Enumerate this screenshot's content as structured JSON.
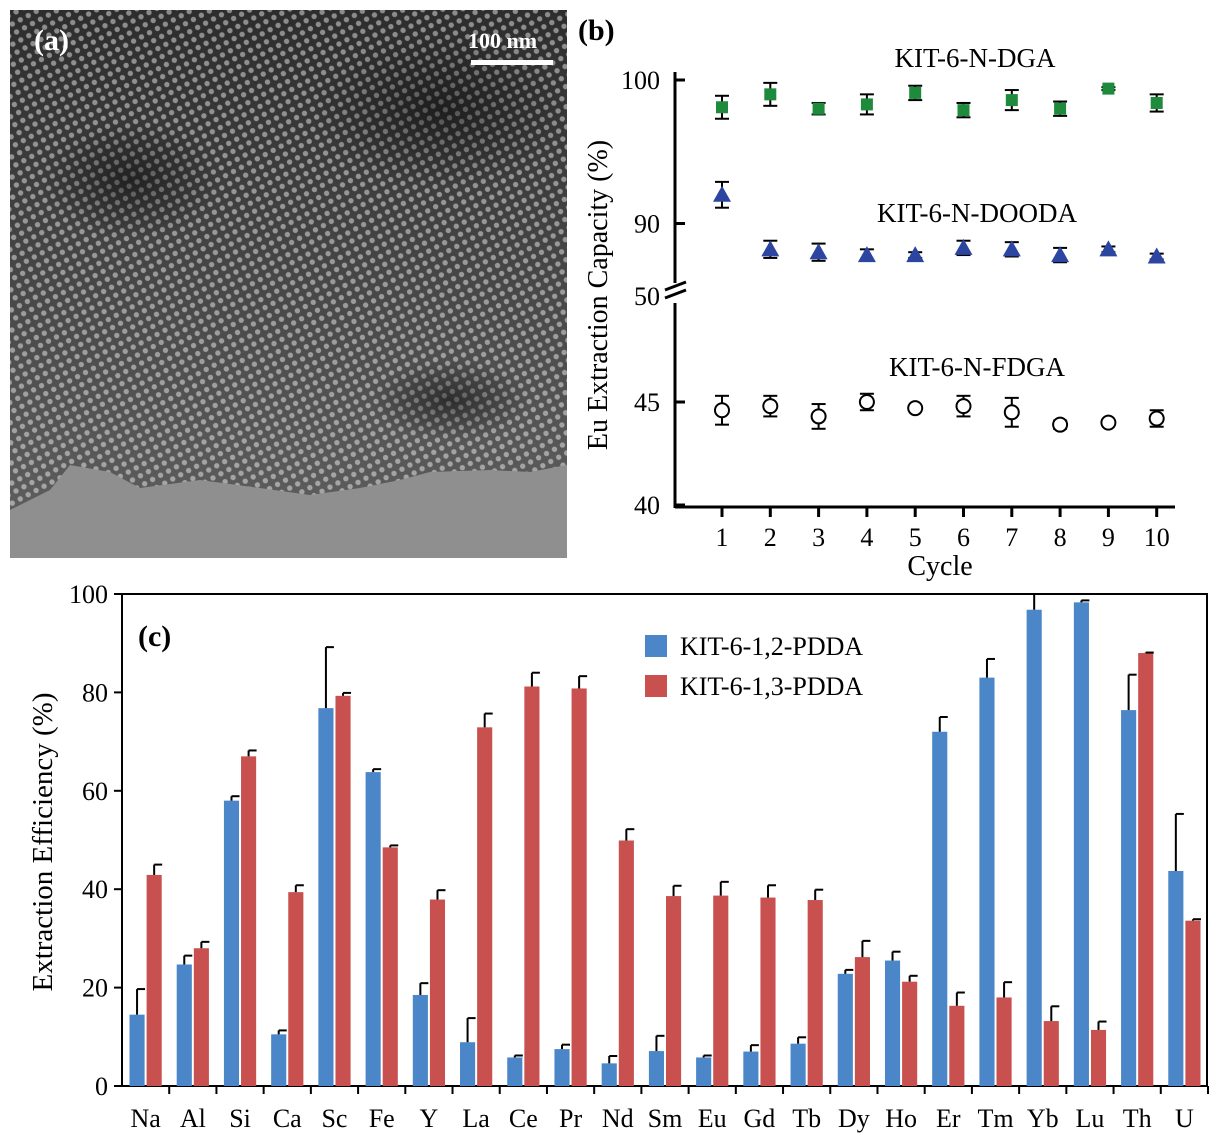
{
  "panel_a": {
    "label": "(a)",
    "scale_bar": "100 nm"
  },
  "chart_data": [
    {
      "panel": "(b)",
      "type": "scatter",
      "xlabel": "Cycle",
      "ylabel": "Eu Extraction Capacity (%)",
      "x": [
        1,
        2,
        3,
        4,
        5,
        6,
        7,
        8,
        9,
        10
      ],
      "y_ticks_upper": [
        90,
        100
      ],
      "y_ticks_lower": [
        40,
        45,
        50
      ],
      "axis_break": true,
      "series": [
        {
          "name": "KIT-6-N-DGA",
          "marker": "square",
          "color": "#1e8a3c",
          "values": [
            98.1,
            99.0,
            98.0,
            98.3,
            99.1,
            97.9,
            98.6,
            98.0,
            99.4,
            98.4
          ],
          "errors": [
            0.8,
            0.8,
            0.4,
            0.7,
            0.5,
            0.5,
            0.7,
            0.5,
            0.1,
            0.6
          ]
        },
        {
          "name": "KIT-6-N-DOODA",
          "marker": "triangle",
          "color": "#2c45a0",
          "values": [
            92.0,
            88.2,
            88.0,
            87.8,
            87.8,
            88.3,
            88.2,
            87.8,
            88.2,
            87.7
          ],
          "errors": [
            0.9,
            0.6,
            0.6,
            0.4,
            0.2,
            0.5,
            0.5,
            0.5,
            0.2,
            0.2
          ]
        },
        {
          "name": "KIT-6-N-FDGA",
          "marker": "open-circle",
          "color": "#000000",
          "values": [
            44.6,
            44.8,
            44.3,
            45.0,
            44.7,
            44.8,
            44.5,
            43.9,
            44.0,
            44.2
          ],
          "errors": [
            0.7,
            0.5,
            0.6,
            0.4,
            0.1,
            0.5,
            0.7,
            0.2,
            0.1,
            0.4
          ]
        }
      ]
    },
    {
      "panel": "(c)",
      "type": "bar",
      "ylabel": "Extraction Efficiency (%)",
      "ylim": [
        0,
        100
      ],
      "yticks": [
        0,
        20,
        40,
        60,
        80,
        100
      ],
      "categories": [
        "Na",
        "Al",
        "Si",
        "Ca",
        "Sc",
        "Fe",
        "Y",
        "La",
        "Ce",
        "Pr",
        "Nd",
        "Sm",
        "Eu",
        "Gd",
        "Tb",
        "Dy",
        "Ho",
        "Er",
        "Tm",
        "Yb",
        "Lu",
        "Th",
        "U"
      ],
      "legend_position": "top-center",
      "series": [
        {
          "name": "KIT-6-1,2-PDDA",
          "color": "#4a86c8",
          "values": [
            14.5,
            24.7,
            58.0,
            10.5,
            76.8,
            63.8,
            18.5,
            8.9,
            5.8,
            7.5,
            4.6,
            7.1,
            5.8,
            7.0,
            8.6,
            22.8,
            25.5,
            72.0,
            83.0,
            96.8,
            98.3,
            76.4,
            43.7
          ],
          "errors": [
            5.2,
            1.8,
            0.9,
            0.8,
            12.4,
            0.6,
            2.4,
            4.9,
            0.4,
            0.9,
            1.5,
            3.1,
            0.4,
            1.3,
            1.3,
            0.8,
            1.8,
            3.0,
            3.8,
            5.0,
            0.4,
            7.2,
            11.6
          ]
        },
        {
          "name": "KIT-6-1,3-PDDA",
          "color": "#c8504e",
          "values": [
            42.9,
            28.0,
            67.0,
            39.4,
            79.3,
            48.5,
            37.9,
            72.9,
            81.2,
            80.8,
            49.9,
            38.6,
            38.7,
            38.3,
            37.8,
            26.2,
            21.2,
            16.3,
            18.0,
            13.2,
            11.4,
            88.0,
            33.6
          ],
          "errors": [
            2.1,
            1.3,
            1.2,
            1.4,
            0.6,
            0.4,
            1.9,
            2.8,
            2.8,
            2.5,
            2.3,
            2.1,
            2.8,
            2.5,
            2.1,
            3.3,
            1.2,
            2.7,
            3.1,
            3.0,
            1.7,
            0.1,
            0.3
          ]
        }
      ]
    }
  ]
}
